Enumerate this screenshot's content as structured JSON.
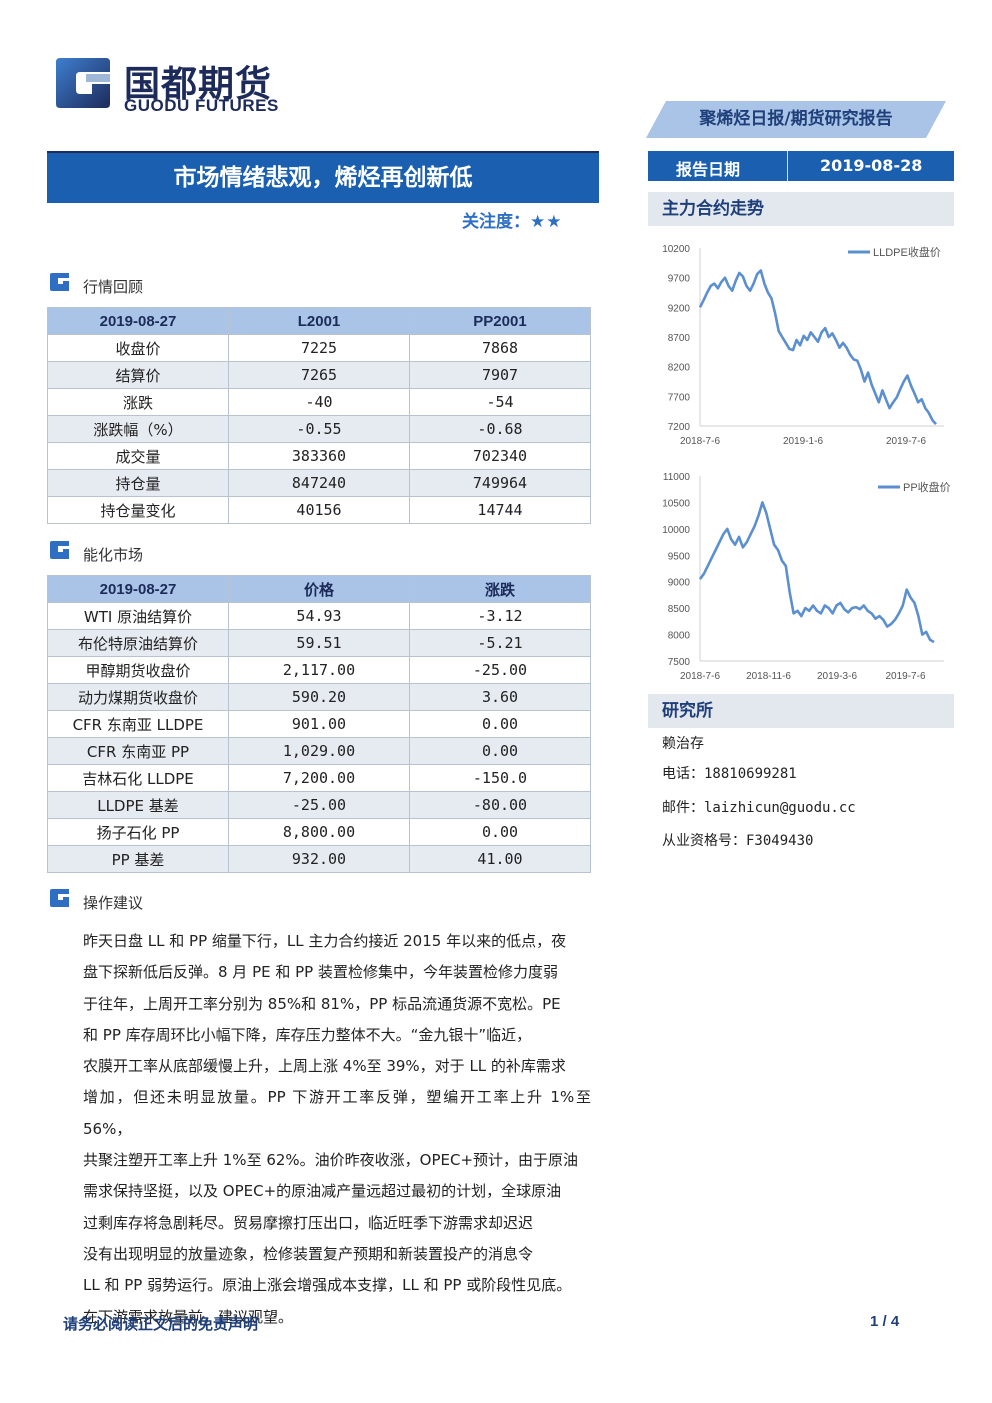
{
  "brand": {
    "name_cn": "国都期货",
    "name_en": "GUODU FUTURES",
    "logo": "guodu-logo"
  },
  "report": {
    "type": "聚烯烃日报/期货研究报告",
    "date_label": "报告日期",
    "date": "2019-08-28",
    "title": "市场情绪悲观，烯烃再创新低",
    "focus_label": "关注度：",
    "focus_stars": "★★",
    "colors": {
      "accent": "#1b5fb0",
      "header_light": "#a9c4e6",
      "row_alt": "#e6ebf2",
      "line": "#5b8fd0"
    }
  },
  "sections": {
    "review": "行情回顾",
    "energy": "能化市场",
    "advice": "操作建议"
  },
  "review_table": {
    "headers": [
      "2019-08-27",
      "L2001",
      "PP2001"
    ],
    "rows": [
      [
        "收盘价",
        "7225",
        "7868"
      ],
      [
        "结算价",
        "7265",
        "7907"
      ],
      [
        "涨跌",
        "-40",
        "-54"
      ],
      [
        "涨跌幅（%）",
        "-0.55",
        "-0.68"
      ],
      [
        "成交量",
        "383360",
        "702340"
      ],
      [
        "持仓量",
        "847240",
        "749964"
      ],
      [
        "持仓量变化",
        "40156",
        "14744"
      ]
    ]
  },
  "energy_table": {
    "headers": [
      "2019-08-27",
      "价格",
      "涨跌"
    ],
    "rows": [
      [
        "WTI 原油结算价",
        "54.93",
        "-3.12"
      ],
      [
        "布伦特原油结算价",
        "59.51",
        "-5.21"
      ],
      [
        "甲醇期货收盘价",
        "2,117.00",
        "-25.00"
      ],
      [
        "动力煤期货收盘价",
        "590.20",
        "3.60"
      ],
      [
        "CFR 东南亚 LLDPE",
        "901.00",
        "0.00"
      ],
      [
        "CFR 东南亚 PP",
        "1,029.00",
        "0.00"
      ],
      [
        "吉林石化 LLDPE",
        "7,200.00",
        "-150.0"
      ],
      [
        "LLDPE 基差",
        "-25.00",
        "-80.00"
      ],
      [
        "扬子石化 PP",
        "8,800.00",
        "0.00"
      ],
      [
        "PP 基差",
        "932.00",
        "41.00"
      ]
    ]
  },
  "advice_lines": [
    "昨天日盘 LL 和 PP 缩量下行，LL 主力合约接近 2015 年以来的低点，夜",
    "盘下探新低后反弹。8 月 PE 和 PP 装置检修集中，今年装置检修力度弱",
    "于往年，上周开工率分别为 85%和 81%，PP 标品流通货源不宽松。PE",
    "和 PP 库存周环比小幅下降，库存压力整体不大。“金九银十”临近，",
    "农膜开工率从底部缓慢上升，上周上涨 4%至 39%，对于 LL 的补库需求",
    "增加，但还未明显放量。PP 下游开工率反弹，塑编开工率上升 1%至 56%，",
    "共聚注塑开工率上升 1%至 62%。油价昨夜收涨，OPEC+预计，由于原油",
    "需求保持坚挺，以及 OPEC+的原油减产量远超过最初的计划，全球原油",
    "过剩库存将急剧耗尽。贸易摩擦打压出口，临近旺季下游需求却迟迟",
    "没有出现明显的放量迹象，检修装置复产预期和新装置投产的消息令",
    "LL 和 PP 弱势运行。原油上涨会增强成本支撑，LL 和 PP 或阶段性见底。",
    "在下游需求放量前，建议观望。"
  ],
  "sidebar": {
    "trend_heading": "主力合约走势",
    "research_heading": "研究所",
    "analyst": "赖治存",
    "phone_label": "电话：",
    "phone": "18810699281",
    "email_label": "邮件：",
    "email": "laizhicun@guodu.cc",
    "license_label": "从业资格号：",
    "license": "F3049430"
  },
  "chart_data": [
    {
      "type": "line",
      "series": [
        {
          "name": "LLDPE收盘价",
          "values": [
            9200,
            9320,
            9450,
            9560,
            9600,
            9520,
            9630,
            9700,
            9560,
            9480,
            9650,
            9780,
            9720,
            9560,
            9480,
            9600,
            9760,
            9820,
            9600,
            9450,
            9350,
            9100,
            8800,
            8700,
            8600,
            8500,
            8480,
            8650,
            8560,
            8720,
            8650,
            8780,
            8700,
            8620,
            8780,
            8850,
            8700,
            8760,
            8650,
            8520,
            8600,
            8520,
            8400,
            8320,
            8300,
            8150,
            7950,
            8100,
            7900,
            7750,
            7600,
            7800,
            7650,
            7500,
            7600,
            7680,
            7820,
            7950,
            8050,
            7880,
            7750,
            7600,
            7650,
            7500,
            7420,
            7300,
            7230
          ]
        }
      ],
      "x_ticks": [
        "2018-7-6",
        "2019-1-6",
        "2019-7-6"
      ],
      "y_ticks": [
        10200,
        9700,
        9200,
        8700,
        8200,
        7700,
        7200
      ],
      "ylim": [
        7200,
        10200
      ],
      "legend": "top-right"
    },
    {
      "type": "line",
      "series": [
        {
          "name": "PP收盘价",
          "values": [
            9050,
            9150,
            9300,
            9450,
            9600,
            9750,
            9900,
            10000,
            9800,
            9700,
            9850,
            9650,
            9750,
            9900,
            10050,
            10250,
            10500,
            10300,
            10000,
            9700,
            9600,
            9400,
            9300,
            8800,
            8400,
            8450,
            8350,
            8500,
            8450,
            8550,
            8450,
            8400,
            8550,
            8500,
            8400,
            8550,
            8600,
            8480,
            8420,
            8500,
            8520,
            8480,
            8550,
            8450,
            8400,
            8300,
            8350,
            8280,
            8150,
            8200,
            8280,
            8400,
            8550,
            8850,
            8700,
            8600,
            8350,
            8000,
            8050,
            7900,
            7860
          ]
        }
      ],
      "x_ticks": [
        "2018-7-6",
        "2018-11-6",
        "2019-3-6",
        "2019-7-6"
      ],
      "y_ticks": [
        11000,
        10500,
        10000,
        9500,
        9000,
        8500,
        8000,
        7500
      ],
      "ylim": [
        7500,
        11000
      ],
      "legend": "top-right"
    }
  ],
  "footer": {
    "disclaimer": "请务必阅读正文后的免责声明",
    "page": "1 / 4"
  }
}
